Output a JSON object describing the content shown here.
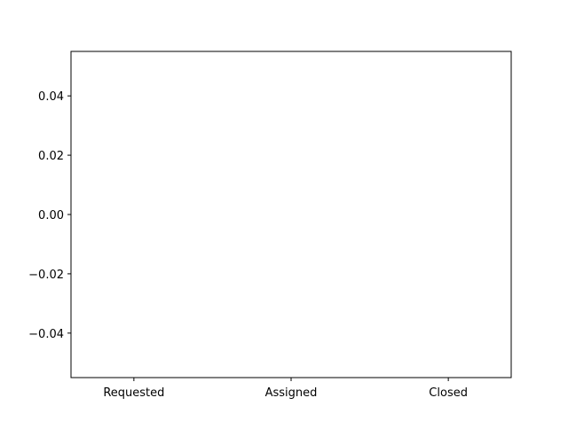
{
  "chart_data": {
    "type": "bar",
    "categories": [
      "Requested",
      "Assigned",
      "Closed"
    ],
    "series": [],
    "yticks": [
      "−0.04",
      "−0.02",
      "0.00",
      "0.02",
      "0.04"
    ],
    "ylim": [
      -0.055,
      0.055
    ],
    "grid": false,
    "title": "",
    "xlabel": "",
    "ylabel": "",
    "colors": {
      "axis": "#000000",
      "background": "#ffffff"
    }
  }
}
